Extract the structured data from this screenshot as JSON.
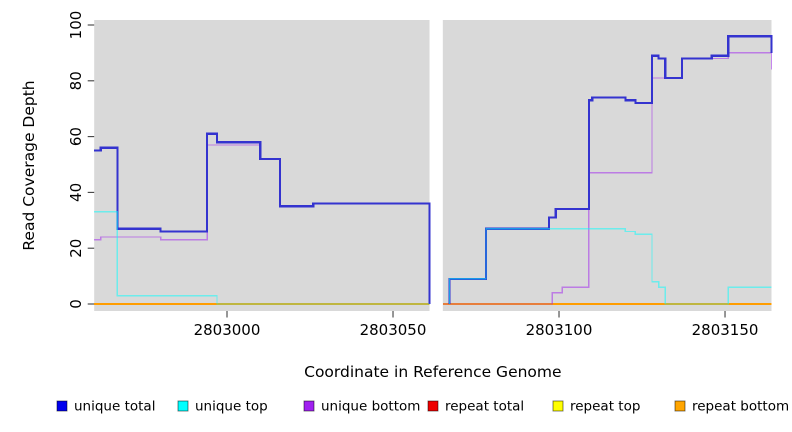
{
  "figure": {
    "bg": "#ffffff",
    "panel_bg": "#d9d9d9"
  },
  "axes": {
    "x_title": "Coordinate in Reference Genome",
    "y_title": "Read Coverage Depth",
    "x_tick_labels": [
      "2803000",
      "2803050",
      "2803100",
      "2803150"
    ],
    "y_tick_labels": [
      "0",
      "20",
      "40",
      "60",
      "80",
      "100"
    ]
  },
  "legend": {
    "items": [
      {
        "label": "unique total",
        "color": "#0000ee"
      },
      {
        "label": "unique top",
        "color": "#00ffff"
      },
      {
        "label": "unique bottom",
        "color": "#a020f0"
      },
      {
        "label": "repeat total",
        "color": "#ee0000"
      },
      {
        "label": "repeat top",
        "color": "#ffff00"
      },
      {
        "label": "repeat bottom",
        "color": "#ffa500"
      }
    ]
  },
  "chart_data": {
    "type": "line",
    "title": "",
    "xlabel": "Coordinate in Reference Genome",
    "ylabel": "Read Coverage Depth",
    "x_range": [
      2802960,
      2803164
    ],
    "y_range": [
      0,
      100
    ],
    "x_ticks": [
      2803000,
      2803050,
      2803100,
      2803150
    ],
    "y_ticks": [
      0,
      20,
      40,
      60,
      80,
      100
    ],
    "gap_x": [
      2803061,
      2803065
    ],
    "grid": false,
    "legend_position": "bottom",
    "note": "step coverage plot; each run is [coord_start, coord_end, depth]; series drawn bottom-to-top in listed order; translucent unique-series overlap repeat-series at depth 0 producing green/mauve composites",
    "series": [
      {
        "name": "repeat total",
        "color": "#dd0000",
        "opacity": 1,
        "width": 1.3,
        "segments": [
          [
            [
              2802960,
              2803061,
              0
            ]
          ],
          [
            [
              2803065,
              2803164,
              0
            ]
          ]
        ]
      },
      {
        "name": "repeat top",
        "color": "#ffff00",
        "opacity": 1,
        "width": 1.3,
        "segments": [
          [
            [
              2802960,
              2803061,
              0
            ]
          ],
          [
            [
              2803065,
              2803164,
              0
            ]
          ]
        ]
      },
      {
        "name": "repeat bottom",
        "color": "#ff9d00",
        "opacity": 1,
        "width": 1.7,
        "segments": [
          [
            [
              2802960,
              2803061,
              0
            ]
          ],
          [
            [
              2803065,
              2803164,
              0
            ]
          ]
        ]
      },
      {
        "name": "unique bottom",
        "color": "#a020f0",
        "opacity": 0.5,
        "width": 1.4,
        "segments": [
          [
            [
              2802960,
              2802962,
              23
            ],
            [
              2802962,
              2802980,
              24
            ],
            [
              2802980,
              2802994,
              23
            ],
            [
              2802994,
              2803010,
              57
            ],
            [
              2803010,
              2803016,
              52
            ],
            [
              2803016,
              2803026,
              35
            ],
            [
              2803026,
              2803061,
              36
            ],
            [
              2803061,
              2803061,
              0
            ]
          ],
          [
            [
              2803065,
              2803098,
              0
            ],
            [
              2803098,
              2803101,
              4
            ],
            [
              2803101,
              2803109,
              6
            ],
            [
              2803109,
              2803128,
              47
            ],
            [
              2803128,
              2803137,
              81
            ],
            [
              2803137,
              2803151,
              88
            ],
            [
              2803151,
              2803164,
              90
            ],
            [
              2803164,
              2803164,
              84
            ]
          ]
        ]
      },
      {
        "name": "unique total",
        "color": "#3433cf",
        "opacity": 1,
        "width": 2.2,
        "segments": [
          [
            [
              2802960,
              2802962,
              55
            ],
            [
              2802962,
              2802967,
              56
            ],
            [
              2802967,
              2802980,
              27
            ],
            [
              2802980,
              2802994,
              26
            ],
            [
              2802994,
              2802997,
              61
            ],
            [
              2802997,
              2803010,
              58
            ],
            [
              2803010,
              2803016,
              52
            ],
            [
              2803016,
              2803026,
              35
            ],
            [
              2803026,
              2803061,
              36
            ],
            [
              2803061,
              2803061,
              0
            ]
          ],
          [
            [
              2803067,
              2803067,
              0
            ],
            [
              2803067,
              2803078,
              9
            ],
            [
              2803078,
              2803097,
              27
            ],
            [
              2803097,
              2803099,
              31
            ],
            [
              2803099,
              2803109,
              34
            ],
            [
              2803109,
              2803110,
              73
            ],
            [
              2803110,
              2803120,
              74
            ],
            [
              2803120,
              2803123,
              73
            ],
            [
              2803123,
              2803128,
              72
            ],
            [
              2803128,
              2803130,
              89
            ],
            [
              2803130,
              2803132,
              88
            ],
            [
              2803132,
              2803137,
              81
            ],
            [
              2803137,
              2803146,
              88
            ],
            [
              2803146,
              2803151,
              89
            ],
            [
              2803151,
              2803164,
              96
            ],
            [
              2803164,
              2803164,
              90
            ]
          ]
        ]
      },
      {
        "name": "unique top",
        "color": "#00ffff",
        "opacity": 0.5,
        "width": 1.4,
        "segments": [
          [
            [
              2802960,
              2802967,
              33
            ],
            [
              2802967,
              2802997,
              3
            ],
            [
              2802997,
              2803061,
              0
            ]
          ],
          [
            [
              2803067,
              2803067,
              0
            ],
            [
              2803067,
              2803078,
              9
            ],
            [
              2803078,
              2803120,
              27
            ],
            [
              2803120,
              2803123,
              26
            ],
            [
              2803123,
              2803128,
              25
            ],
            [
              2803128,
              2803130,
              8
            ],
            [
              2803130,
              2803132,
              6
            ],
            [
              2803132,
              2803151,
              0
            ],
            [
              2803151,
              2803164,
              6
            ]
          ]
        ]
      }
    ]
  }
}
